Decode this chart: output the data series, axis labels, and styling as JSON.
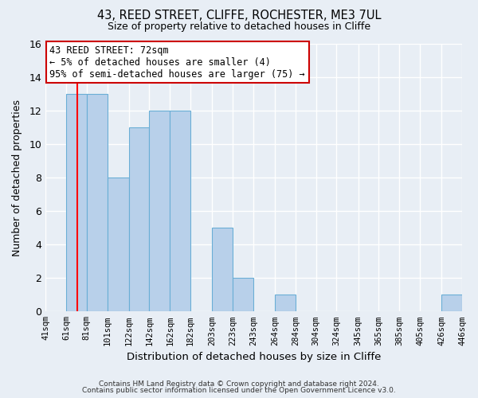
{
  "title": "43, REED STREET, CLIFFE, ROCHESTER, ME3 7UL",
  "subtitle": "Size of property relative to detached houses in Cliffe",
  "xlabel": "Distribution of detached houses by size in Cliffe",
  "ylabel": "Number of detached properties",
  "bin_edges": [
    41,
    61,
    81,
    101,
    122,
    142,
    162,
    182,
    203,
    223,
    243,
    264,
    284,
    304,
    324,
    345,
    365,
    385,
    405,
    426,
    446
  ],
  "bin_labels": [
    "41sqm",
    "61sqm",
    "81sqm",
    "101sqm",
    "122sqm",
    "142sqm",
    "162sqm",
    "182sqm",
    "203sqm",
    "223sqm",
    "243sqm",
    "264sqm",
    "284sqm",
    "304sqm",
    "324sqm",
    "345sqm",
    "365sqm",
    "385sqm",
    "405sqm",
    "426sqm",
    "446sqm"
  ],
  "counts": [
    0,
    13,
    13,
    8,
    11,
    12,
    12,
    0,
    5,
    2,
    0,
    1,
    0,
    0,
    0,
    0,
    0,
    0,
    0,
    1
  ],
  "bar_color": "#b8d0ea",
  "bar_edge_color": "#6aaed6",
  "redline_x": 72,
  "ylim": [
    0,
    16
  ],
  "yticks": [
    0,
    2,
    4,
    6,
    8,
    10,
    12,
    14,
    16
  ],
  "annotation_line1": "43 REED STREET: 72sqm",
  "annotation_line2": "← 5% of detached houses are smaller (4)",
  "annotation_line3": "95% of semi-detached houses are larger (75) →",
  "annotation_box_color": "#ffffff",
  "annotation_box_edge_color": "#cc0000",
  "footer1": "Contains HM Land Registry data © Crown copyright and database right 2024.",
  "footer2": "Contains public sector information licensed under the Open Government Licence v3.0.",
  "background_color": "#e8eef5",
  "grid_color": "#ffffff",
  "ax_bg_color": "#dde6f0"
}
